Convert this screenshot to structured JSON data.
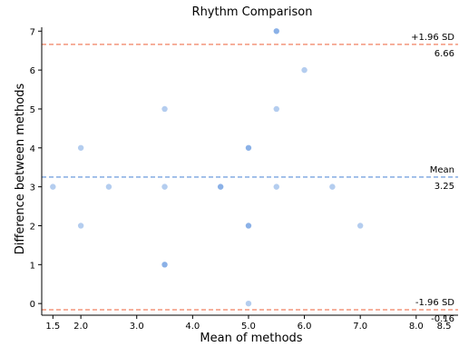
{
  "chart_data": {
    "type": "scatter",
    "title": "Rhythm Comparison",
    "xlabel": "Mean of methods",
    "ylabel": "Difference between methods",
    "xlim": [
      1.3,
      8.75
    ],
    "ylim": [
      -0.3,
      7.1
    ],
    "xticks": [
      1.5,
      2.0,
      3.0,
      4.0,
      5.0,
      6.0,
      7.0,
      8.0,
      8.5
    ],
    "xtick_labels": [
      "1.5",
      "2.0",
      "3.0",
      "4.0",
      "5.0",
      "6.0",
      "7.0",
      "8.0",
      "8.5"
    ],
    "yticks": [
      0,
      1,
      2,
      3,
      4,
      5,
      6,
      7
    ],
    "ytick_labels": [
      "0",
      "1",
      "2",
      "3",
      "4",
      "5",
      "6",
      "7"
    ],
    "grid": false,
    "point_color": "#6a9be0",
    "mean_line_color": "#5b8fd8",
    "limit_line_color": "#f08060",
    "points": [
      {
        "x": 1.5,
        "y": 3,
        "count": 1
      },
      {
        "x": 2.0,
        "y": 4,
        "count": 1
      },
      {
        "x": 2.0,
        "y": 2,
        "count": 1
      },
      {
        "x": 2.5,
        "y": 3,
        "count": 1
      },
      {
        "x": 3.5,
        "y": 5,
        "count": 1
      },
      {
        "x": 3.5,
        "y": 3,
        "count": 1
      },
      {
        "x": 3.5,
        "y": 1,
        "count": 2
      },
      {
        "x": 4.5,
        "y": 3,
        "count": 2
      },
      {
        "x": 5.0,
        "y": 4,
        "count": 2
      },
      {
        "x": 5.0,
        "y": 2,
        "count": 2
      },
      {
        "x": 5.0,
        "y": 0,
        "count": 1
      },
      {
        "x": 5.5,
        "y": 7,
        "count": 2
      },
      {
        "x": 5.5,
        "y": 5,
        "count": 1
      },
      {
        "x": 5.5,
        "y": 3,
        "count": 1
      },
      {
        "x": 6.0,
        "y": 6,
        "count": 1
      },
      {
        "x": 6.5,
        "y": 3,
        "count": 1
      },
      {
        "x": 7.0,
        "y": 2,
        "count": 1
      }
    ],
    "reference_lines": [
      {
        "kind": "upper",
        "value": 6.66,
        "label": "+1.96 SD",
        "value_label": "6.66"
      },
      {
        "kind": "mean",
        "value": 3.25,
        "label": "Mean",
        "value_label": "3.25"
      },
      {
        "kind": "lower",
        "value": -0.16,
        "label": "-1.96 SD",
        "value_label": "-0.16"
      }
    ]
  }
}
